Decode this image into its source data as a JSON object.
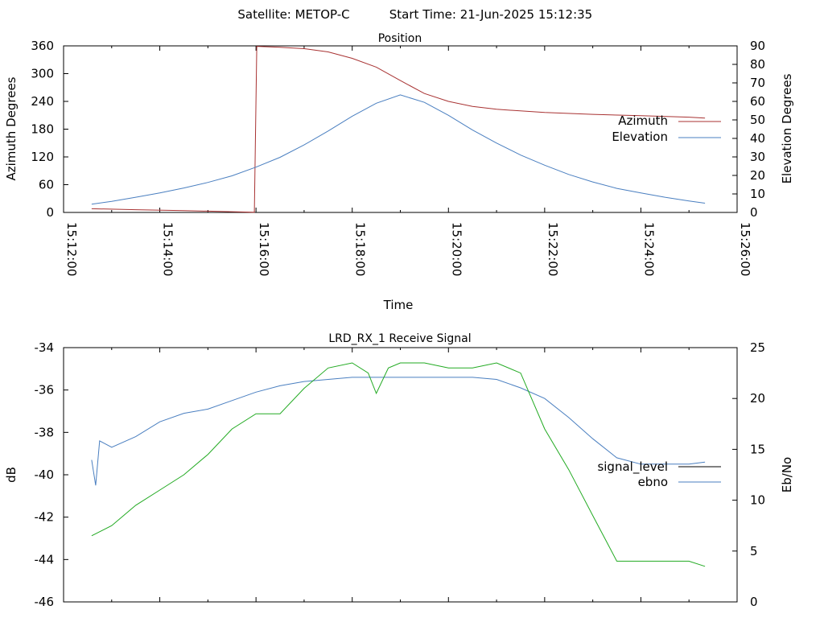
{
  "header": {
    "satellite": "Satellite: METOP-C",
    "start_time": "Start Time: 21-Jun-2025 15:12:35"
  },
  "chart_data": [
    {
      "type": "line",
      "title": "Position",
      "xlabel": "Time",
      "ylabel": "Azimuth Degrees",
      "y2label": "Elevation Degrees",
      "xlim": [
        "15:12:00",
        "15:26:00"
      ],
      "ylim": [
        0,
        360
      ],
      "y2lim": [
        0,
        90
      ],
      "xticks": [
        "15:12:00",
        "15:14:00",
        "15:16:00",
        "15:18:00",
        "15:20:00",
        "15:22:00",
        "15:24:00",
        "15:26:00"
      ],
      "yticks": [
        0,
        60,
        120,
        180,
        240,
        300,
        360
      ],
      "y2ticks": [
        0,
        10,
        20,
        30,
        40,
        50,
        60,
        70,
        80,
        90
      ],
      "legend_position": "right",
      "series": [
        {
          "name": "Azimuth",
          "axis": "y1",
          "color": "#a83232",
          "points": [
            [
              "15:12:35",
              8
            ],
            [
              "15:13:30",
              6
            ],
            [
              "15:14:30",
              4
            ],
            [
              "15:15:30",
              1.5
            ],
            [
              "15:15:58",
              0.3
            ],
            [
              "15:16:01",
              359
            ],
            [
              "15:16:30",
              357
            ],
            [
              "15:17:00",
              354
            ],
            [
              "15:17:30",
              347
            ],
            [
              "15:18:00",
              333
            ],
            [
              "15:18:30",
              314
            ],
            [
              "15:19:00",
              285
            ],
            [
              "15:19:30",
              257
            ],
            [
              "15:20:00",
              240
            ],
            [
              "15:20:30",
              229
            ],
            [
              "15:21:00",
              223
            ],
            [
              "15:22:00",
              216
            ],
            [
              "15:23:00",
              212
            ],
            [
              "15:24:00",
              209
            ],
            [
              "15:25:00",
              206
            ],
            [
              "15:25:20",
              204
            ]
          ]
        },
        {
          "name": "Elevation",
          "axis": "y2",
          "color": "#4a7fc0",
          "points": [
            [
              "15:12:35",
              4.5
            ],
            [
              "15:13:00",
              6
            ],
            [
              "15:13:30",
              8.2
            ],
            [
              "15:14:00",
              10.5
            ],
            [
              "15:14:30",
              13.2
            ],
            [
              "15:15:00",
              16.2
            ],
            [
              "15:15:30",
              19.8
            ],
            [
              "15:16:00",
              24.5
            ],
            [
              "15:16:30",
              29.8
            ],
            [
              "15:17:00",
              36.5
            ],
            [
              "15:17:30",
              44
            ],
            [
              "15:18:00",
              52
            ],
            [
              "15:18:30",
              59
            ],
            [
              "15:19:00",
              63.5
            ],
            [
              "15:19:30",
              59.5
            ],
            [
              "15:20:00",
              52.5
            ],
            [
              "15:20:30",
              44.5
            ],
            [
              "15:21:00",
              37.5
            ],
            [
              "15:21:30",
              31
            ],
            [
              "15:22:00",
              25.5
            ],
            [
              "15:22:30",
              20.5
            ],
            [
              "15:23:00",
              16.5
            ],
            [
              "15:23:30",
              13
            ],
            [
              "15:24:00",
              10.5
            ],
            [
              "15:24:30",
              8.2
            ],
            [
              "15:25:00",
              6.2
            ],
            [
              "15:25:20",
              5
            ]
          ]
        }
      ]
    },
    {
      "type": "line",
      "title": "LRD_RX_1 Receive Signal",
      "xlabel": "",
      "ylabel": "dB",
      "y2label": "Eb/No",
      "xlim": [
        "15:12:00",
        "15:26:00"
      ],
      "ylim": [
        -46,
        -34
      ],
      "y2lim": [
        0,
        25
      ],
      "yticks": [
        -46,
        -44,
        -42,
        -40,
        -38,
        -36,
        -34
      ],
      "y2ticks": [
        0,
        5,
        10,
        15,
        20,
        25
      ],
      "legend_position": "right",
      "series": [
        {
          "name": "signal_level",
          "axis": "y1",
          "color": "#4a7fc0",
          "points": [
            [
              "15:12:35",
              -39.3
            ],
            [
              "15:12:40",
              -40.5
            ],
            [
              "15:12:45",
              -38.4
            ],
            [
              "15:13:00",
              -38.7
            ],
            [
              "15:13:30",
              -38.2
            ],
            [
              "15:14:00",
              -37.5
            ],
            [
              "15:14:30",
              -37.1
            ],
            [
              "15:15:00",
              -36.9
            ],
            [
              "15:15:30",
              -36.5
            ],
            [
              "15:16:00",
              -36.1
            ],
            [
              "15:16:30",
              -35.8
            ],
            [
              "15:17:00",
              -35.6
            ],
            [
              "15:17:30",
              -35.5
            ],
            [
              "15:18:00",
              -35.4
            ],
            [
              "15:18:30",
              -35.4
            ],
            [
              "15:19:00",
              -35.4
            ],
            [
              "15:19:30",
              -35.4
            ],
            [
              "15:20:00",
              -35.4
            ],
            [
              "15:20:30",
              -35.4
            ],
            [
              "15:21:00",
              -35.5
            ],
            [
              "15:21:30",
              -35.9
            ],
            [
              "15:22:00",
              -36.4
            ],
            [
              "15:22:30",
              -37.3
            ],
            [
              "15:23:00",
              -38.3
            ],
            [
              "15:23:30",
              -39.2
            ],
            [
              "15:24:00",
              -39.5
            ],
            [
              "15:24:30",
              -39.5
            ],
            [
              "15:25:00",
              -39.5
            ],
            [
              "15:25:20",
              -39.4
            ]
          ]
        },
        {
          "name": "ebno",
          "axis": "y2",
          "color": "#22aa22",
          "points": [
            [
              "15:12:35",
              6.5
            ],
            [
              "15:13:00",
              7.5
            ],
            [
              "15:13:30",
              9.5
            ],
            [
              "15:14:00",
              11
            ],
            [
              "15:14:30",
              12.5
            ],
            [
              "15:15:00",
              14.5
            ],
            [
              "15:15:30",
              17
            ],
            [
              "15:16:00",
              18.5
            ],
            [
              "15:16:30",
              18.5
            ],
            [
              "15:17:00",
              21
            ],
            [
              "15:17:30",
              23
            ],
            [
              "15:18:00",
              23.5
            ],
            [
              "15:18:20",
              22.5
            ],
            [
              "15:18:30",
              20.5
            ],
            [
              "15:18:45",
              23
            ],
            [
              "15:19:00",
              23.5
            ],
            [
              "15:19:30",
              23.5
            ],
            [
              "15:20:00",
              23
            ],
            [
              "15:20:30",
              23
            ],
            [
              "15:21:00",
              23.5
            ],
            [
              "15:21:30",
              22.5
            ],
            [
              "15:22:00",
              17
            ],
            [
              "15:22:30",
              13
            ],
            [
              "15:23:00",
              8.5
            ],
            [
              "15:23:20",
              5.5
            ],
            [
              "15:23:30",
              4
            ],
            [
              "15:24:00",
              4
            ],
            [
              "15:24:30",
              4
            ],
            [
              "15:25:00",
              4
            ],
            [
              "15:25:20",
              3.5
            ]
          ]
        }
      ]
    }
  ]
}
